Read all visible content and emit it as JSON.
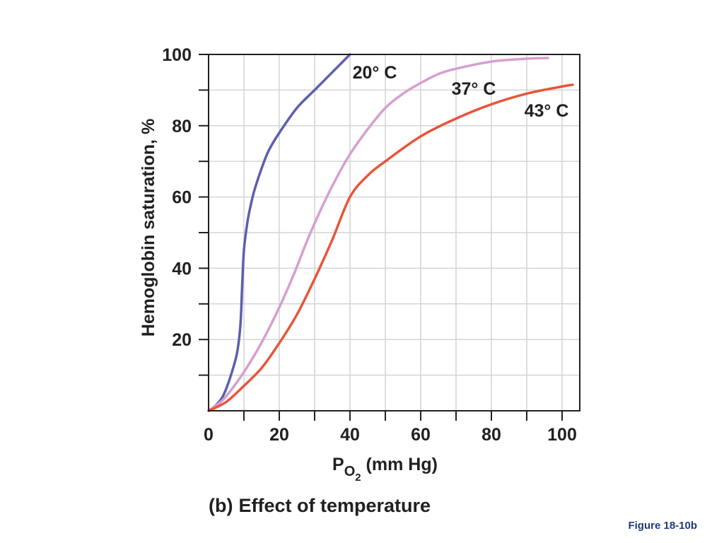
{
  "chart_data": {
    "type": "line",
    "xlabel": {
      "main": "P",
      "sub": "O",
      "subsub": "2",
      "rest": " (mm Hg)"
    },
    "ylabel": "Hemoglobin saturation, %",
    "xlim": [
      0,
      105
    ],
    "ylim": [
      0,
      100
    ],
    "x_ticks": [
      "0",
      "20",
      "40",
      "60",
      "80",
      "100"
    ],
    "y_ticks": [
      "20",
      "40",
      "60",
      "80",
      "100"
    ],
    "grid": true,
    "series": [
      {
        "name": "20° C",
        "color": "#5c5fae",
        "x": [
          0,
          2,
          4,
          6,
          8,
          9,
          9.5,
          10,
          11,
          12,
          13,
          15,
          17,
          20,
          25,
          30,
          35,
          40
        ],
        "y": [
          0,
          1.5,
          4,
          9,
          16,
          24,
          35,
          45,
          53,
          58,
          62,
          68,
          73,
          78,
          85,
          90,
          95,
          100
        ]
      },
      {
        "name": "37° C",
        "color": "#d59fd0",
        "x": [
          0,
          4,
          8,
          12,
          16,
          20,
          24,
          28,
          32,
          36,
          40,
          45,
          50,
          55,
          60,
          65,
          70,
          80,
          90,
          96
        ],
        "y": [
          0,
          3,
          8,
          14,
          21,
          29,
          38,
          48,
          57,
          65,
          72,
          79,
          85,
          89,
          92,
          94.5,
          96,
          98,
          98.8,
          99
        ]
      },
      {
        "name": "43° C",
        "color": "#e8553a",
        "x": [
          0,
          5,
          10,
          15,
          20,
          25,
          30,
          35,
          40,
          45,
          50,
          60,
          70,
          80,
          90,
          100,
          103
        ],
        "y": [
          0,
          2.5,
          7,
          12,
          19,
          27,
          37,
          48,
          60,
          66,
          70,
          77,
          82,
          86,
          89,
          91,
          91.5
        ]
      }
    ]
  },
  "caption": {
    "letter": "(b)",
    "text": "Effect of temperature"
  },
  "figure_number": "Figure 18-10b"
}
